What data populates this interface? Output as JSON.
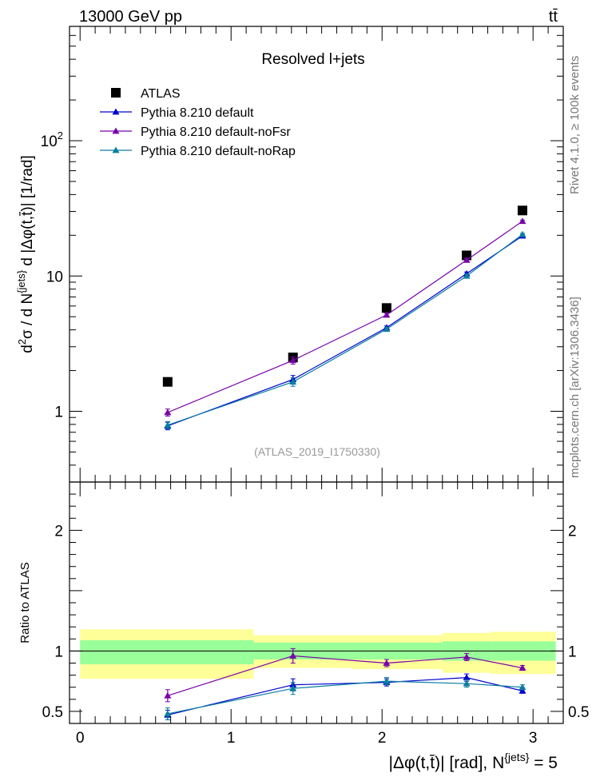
{
  "header": {
    "left": "13000 GeV pp",
    "right": "tt̄",
    "side_top": "Rivet 4.1.0, ≥ 100k events",
    "side_bottom": "mcplots.cern.ch [arXiv:1306.3436]"
  },
  "chart_data": [
    {
      "type": "scatter",
      "panel": "main",
      "title": "Resolved l+jets",
      "watermark": "(ATLAS_2019_I1750330)",
      "ylabel": "d²σ / d N^{jets} d |Δφ(t,t̄)| [1/rad]",
      "yscale": "log",
      "ylim": [
        0.3,
        700
      ],
      "xlim": [
        -0.07,
        3.2
      ],
      "y_ticks": [
        {
          "value": 1,
          "label": "1"
        },
        {
          "value": 10,
          "label": "10"
        },
        {
          "value": 100,
          "label": "10²"
        }
      ],
      "x": [
        0.58,
        1.41,
        2.03,
        2.56,
        2.93
      ],
      "series": [
        {
          "name": "ATLAS",
          "style": "data",
          "color": "#000000",
          "values": [
            1.65,
            2.5,
            5.8,
            14.2,
            30.5
          ],
          "errors": [
            0.05,
            0.08,
            0.15,
            0.4,
            0.8
          ]
        },
        {
          "name": "Pythia 8.210 default",
          "style": "mc",
          "color": "#0000cc",
          "values": [
            0.78,
            1.72,
            4.15,
            10.4,
            19.8
          ],
          "errors": [
            0.05,
            0.12,
            0.12,
            0.3,
            0.4
          ]
        },
        {
          "name": "Pythia 8.210 default-noFsr",
          "style": "mc",
          "color": "#7a00a8",
          "values": [
            0.98,
            2.38,
            5.15,
            13.1,
            25.4
          ],
          "errors": [
            0.06,
            0.15,
            0.15,
            0.35,
            0.5
          ]
        },
        {
          "name": "Pythia 8.210 default-noRap",
          "style": "mc",
          "color": "#0b7fa0",
          "values": [
            0.79,
            1.65,
            4.05,
            10.0,
            20.3
          ],
          "errors": [
            0.05,
            0.12,
            0.12,
            0.3,
            0.4
          ]
        }
      ]
    },
    {
      "type": "scatter",
      "panel": "ratio",
      "ylabel": "Ratio to ATLAS",
      "xlabel": "|Δφ(t,t̄)| [rad], N^{jets} = 5",
      "ylim": [
        0.4,
        2.4
      ],
      "xlim": [
        -0.07,
        3.2
      ],
      "y_ticks": [
        {
          "value": 0.5,
          "label": "0.5"
        },
        {
          "value": 1,
          "label": "1"
        },
        {
          "value": 2,
          "label": "2"
        }
      ],
      "x_ticks": [
        {
          "value": 0,
          "label": "0"
        },
        {
          "value": 1,
          "label": "1"
        },
        {
          "value": 2,
          "label": "2"
        },
        {
          "value": 3,
          "label": "3"
        }
      ],
      "bands": [
        {
          "x0": 0.0,
          "x1": 1.15,
          "stat_low": 0.89,
          "stat_high": 1.09,
          "tot_low": 0.77,
          "tot_high": 1.18
        },
        {
          "x0": 1.15,
          "x1": 1.8,
          "stat_low": 0.93,
          "stat_high": 1.07,
          "tot_low": 0.86,
          "tot_high": 1.13
        },
        {
          "x0": 1.8,
          "x1": 2.4,
          "stat_low": 0.93,
          "stat_high": 1.07,
          "tot_low": 0.85,
          "tot_high": 1.13
        },
        {
          "x0": 2.4,
          "x1": 2.72,
          "stat_low": 0.92,
          "stat_high": 1.08,
          "tot_low": 0.82,
          "tot_high": 1.15
        },
        {
          "x0": 2.72,
          "x1": 3.15,
          "stat_low": 0.92,
          "stat_high": 1.08,
          "tot_low": 0.81,
          "tot_high": 1.16
        }
      ],
      "x": [
        0.58,
        1.41,
        2.03,
        2.56,
        2.93
      ],
      "series": [
        {
          "name": "Pythia 8.210 default",
          "color": "#0000cc",
          "values": [
            0.47,
            0.72,
            0.74,
            0.78,
            0.67
          ],
          "errors": [
            0.04,
            0.05,
            0.03,
            0.03,
            0.02
          ]
        },
        {
          "name": "Pythia 8.210 default-noFsr",
          "color": "#7a00a8",
          "values": [
            0.63,
            0.96,
            0.9,
            0.95,
            0.86
          ],
          "errors": [
            0.05,
            0.06,
            0.03,
            0.03,
            0.02
          ]
        },
        {
          "name": "Pythia 8.210 default-noRap",
          "color": "#0b7fa0",
          "values": [
            0.48,
            0.69,
            0.75,
            0.73,
            0.7
          ],
          "errors": [
            0.05,
            0.05,
            0.03,
            0.03,
            0.02
          ]
        }
      ],
      "band_colors": {
        "stat": "#99ff99",
        "total": "#ffff99"
      }
    }
  ]
}
